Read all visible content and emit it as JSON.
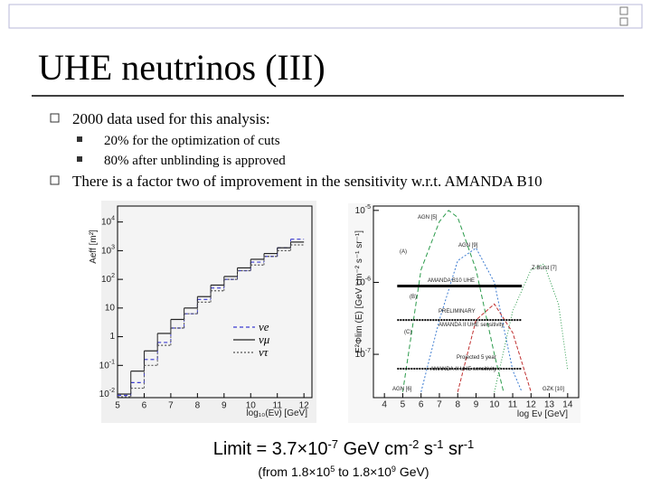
{
  "header": {
    "title": "UHE neutrinos (III)"
  },
  "bullets": [
    {
      "text": "2000 data used for this analysis:",
      "sub": [
        "20% for the optimization of cuts",
        "80% after unblinding is approved"
      ]
    },
    {
      "text": "There is a factor two of improvement in  the sensitivity w.r.t. AMANDA B10",
      "sub": []
    }
  ],
  "figures": [
    {
      "type": "histogram",
      "xlabel": "log₁₀(Eν) [GeV]",
      "ylabel": "Aeff [m²]",
      "log_y": true,
      "xlim": [
        5,
        12.3
      ],
      "ylim": [
        0.0075,
        36000
      ],
      "xticks": [
        5,
        6,
        7,
        8,
        9,
        10,
        11,
        12
      ],
      "yticks": [
        {
          "value": 0.01,
          "label": "10",
          "sup": "-2"
        },
        {
          "value": 0.1,
          "label": "10",
          "sup": "-1"
        },
        1,
        10,
        {
          "value": 100,
          "label": "10",
          "sup": "2"
        },
        {
          "value": 1000,
          "label": "10",
          "sup": "3"
        },
        {
          "value": 10000,
          "label": "10",
          "sup": "4"
        }
      ],
      "bins": [
        5,
        5.5,
        6,
        6.5,
        7,
        7.5,
        8,
        8.5,
        9,
        9.5,
        10,
        10.5,
        11,
        11.5,
        12
      ],
      "series": [
        {
          "name": "νe",
          "color": "#3a3ad0",
          "dash": "4,3",
          "values": [
            0.009,
            0.025,
            0.16,
            0.63,
            2,
            6.3,
            20,
            50,
            100,
            200,
            398,
            631,
            1259,
            2512
          ]
        },
        {
          "name": "νμ",
          "color": "#222222",
          "dash": "none",
          "values": [
            0.01,
            0.063,
            0.32,
            1.3,
            4,
            10,
            25,
            63,
            126,
            251,
            501,
            794,
            1259,
            1995
          ]
        },
        {
          "name": "ντ",
          "color": "#555555",
          "dash": "2,2",
          "values": [
            0.008,
            0.016,
            0.1,
            0.5,
            2,
            6.3,
            16,
            40,
            100,
            200,
            316,
            631,
            1000,
            1585
          ]
        }
      ]
    },
    {
      "type": "line",
      "xlabel": "log Eν [GeV]",
      "ylabel": "E²Φlim (E) [GeV cm⁻² s⁻¹ sr⁻¹]",
      "log_y": true,
      "xlim": [
        3.4,
        14.6
      ],
      "ylim": [
        2.5e-08,
        1.15e-05
      ],
      "xticks": [
        4,
        5,
        6,
        7,
        8,
        9,
        10,
        11,
        12,
        13,
        14
      ],
      "yticks": [
        {
          "value": 1e-07,
          "label": "10",
          "sup": "-7"
        },
        {
          "value": 1e-06,
          "label": "10",
          "sup": "-6"
        },
        {
          "value": 1e-05,
          "label": "10",
          "sup": "-5"
        }
      ],
      "series": [
        {
          "color": "#2a9a4a",
          "dash": "5,3",
          "width": 1,
          "x": [
            5,
            6,
            7,
            7.5,
            8,
            9,
            10,
            10.5
          ],
          "y": [
            3e-08,
            1.5e-06,
            7e-06,
            1e-05,
            8e-06,
            1.5e-06,
            1e-07,
            3e-08
          ]
        },
        {
          "color": "#3a7ad0",
          "dash": "2,2",
          "width": 1,
          "x": [
            6,
            7,
            8,
            9,
            10,
            11,
            11.5
          ],
          "y": [
            3e-08,
            3e-07,
            2e-06,
            3e-06,
            1e-06,
            6e-08,
            3e-08
          ]
        },
        {
          "color": "#2a9a4a",
          "dash": "1,2",
          "width": 1,
          "x": [
            10,
            11,
            12,
            12.7,
            13.5,
            14
          ],
          "y": [
            3e-08,
            4e-07,
            1.5e-06,
            1.8e-06,
            5e-07,
            6e-08
          ]
        },
        {
          "color": "#c03030",
          "dash": "4,2",
          "width": 1,
          "x": [
            8,
            9,
            10,
            11,
            12
          ],
          "y": [
            3e-08,
            3e-07,
            5e-07,
            2e-07,
            3e-08
          ]
        },
        {
          "color": "#000000",
          "dash": "none",
          "width": 3,
          "x": [
            4.7,
            11.5
          ],
          "y": [
            8.9e-07,
            8.9e-07
          ]
        },
        {
          "color": "#000000",
          "dash": "2,1",
          "width": 2,
          "x": [
            4.7,
            11.5
          ],
          "y": [
            3e-07,
            3e-07
          ]
        },
        {
          "color": "#000000",
          "dash": "2,1",
          "width": 2,
          "x": [
            4.7,
            11.5
          ],
          "y": [
            6.3e-08,
            6.3e-08
          ]
        }
      ],
      "annotations": [
        "AGN [5]",
        "AGN [9]",
        "Z Burst [7]",
        "(A)",
        "AMANDA B10 UHE",
        "(B)",
        "PRELIMINARY",
        "AMANDA II UHE sensitivity",
        "(C)",
        "Projected 5 year",
        "AMANDA-II UHE sensitivity",
        "AGN [6]",
        "GZK [10]"
      ]
    }
  ],
  "limit": {
    "parts": [
      "Limit = 3.7×10",
      "-7",
      " GeV cm",
      "-2",
      " s",
      "-1",
      " sr",
      "-1"
    ]
  },
  "range": {
    "parts": [
      "(from 1.8×10",
      "5",
      " to 1.8×10",
      "9",
      " GeV)"
    ]
  }
}
